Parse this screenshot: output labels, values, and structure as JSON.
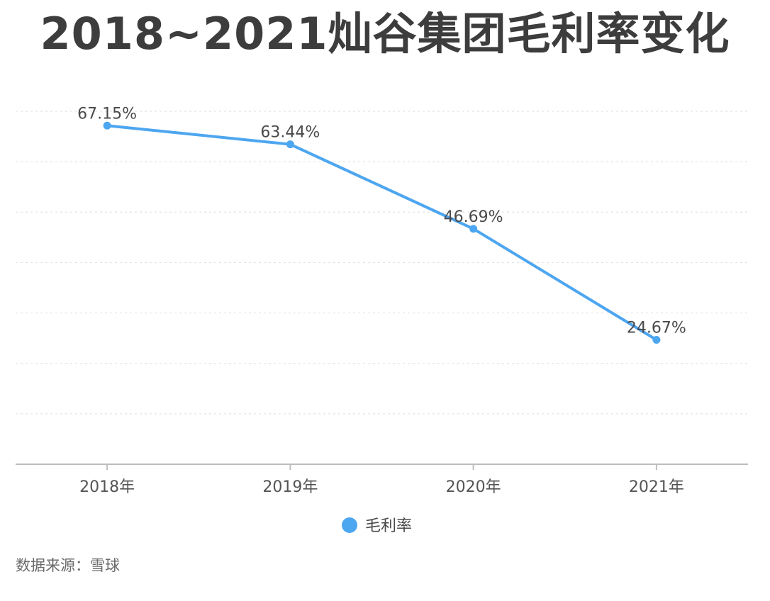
{
  "title": "2018~2021灿谷集团毛利率变化",
  "chart_data": {
    "type": "line",
    "title": "2018~2021灿谷集团毛利率变化",
    "categories": [
      "2018年",
      "2019年",
      "2020年",
      "2021年"
    ],
    "series": [
      {
        "name": "毛利率",
        "values": [
          67.15,
          63.44,
          46.69,
          24.67
        ],
        "labels": [
          "67.15%",
          "63.44%",
          "46.69%",
          "24.67%"
        ],
        "color": "#4da6f0"
      }
    ],
    "xlabel": "",
    "ylabel": "",
    "ylim": [
      0,
      70
    ],
    "grid": true,
    "legend": "bottom-center"
  },
  "source": "数据来源：雪球"
}
